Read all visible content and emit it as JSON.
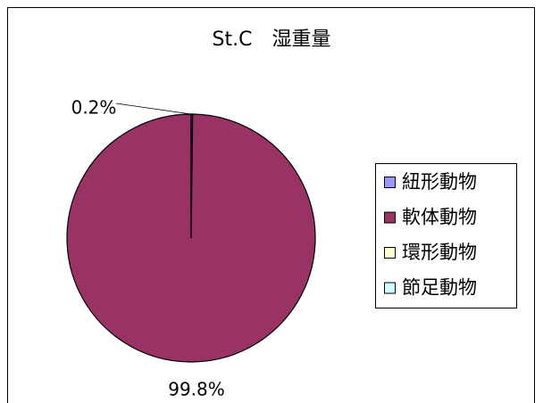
{
  "chart_data": {
    "type": "pie",
    "title": "St.C　湿重量",
    "categories": [
      "紐形動物",
      "軟体動物",
      "環形動物",
      "節足動物"
    ],
    "values": [
      0.2,
      99.8,
      0,
      0
    ],
    "value_labels": [
      "0.2%",
      "99.8%",
      null,
      null
    ],
    "colors": [
      "#9999ff",
      "#993366",
      "#ffffcc",
      "#ccffff"
    ],
    "legend": "right"
  }
}
